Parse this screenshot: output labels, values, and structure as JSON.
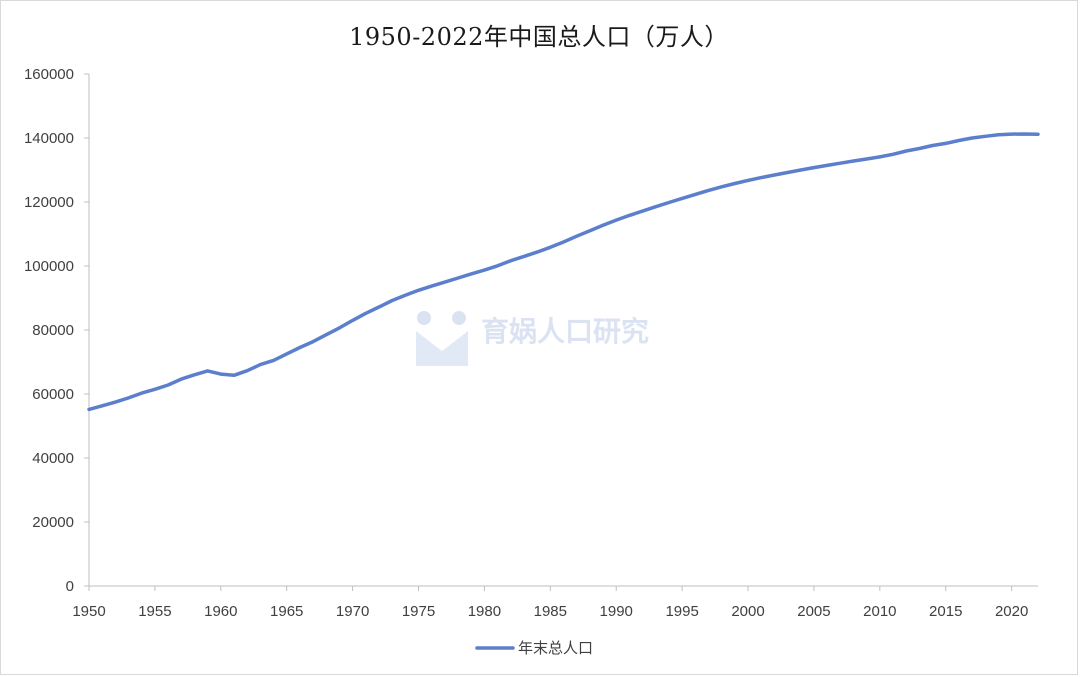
{
  "chart_data": {
    "type": "line",
    "title": "1950-2022年中国总人口（万人）",
    "xlabel": "",
    "ylabel": "",
    "x": [
      1950,
      1951,
      1952,
      1953,
      1954,
      1955,
      1956,
      1957,
      1958,
      1959,
      1960,
      1961,
      1962,
      1963,
      1964,
      1965,
      1966,
      1967,
      1968,
      1969,
      1970,
      1971,
      1972,
      1973,
      1974,
      1975,
      1976,
      1977,
      1978,
      1979,
      1980,
      1981,
      1982,
      1983,
      1984,
      1985,
      1986,
      1987,
      1988,
      1989,
      1990,
      1991,
      1992,
      1993,
      1994,
      1995,
      1996,
      1997,
      1998,
      1999,
      2000,
      2001,
      2002,
      2003,
      2004,
      2005,
      2006,
      2007,
      2008,
      2009,
      2010,
      2011,
      2012,
      2013,
      2014,
      2015,
      2016,
      2017,
      2018,
      2019,
      2020,
      2021,
      2022
    ],
    "series": [
      {
        "name": "年末总人口",
        "color": "#5b7fcc",
        "values": [
          55196,
          56300,
          57482,
          58796,
          60266,
          61465,
          62828,
          64653,
          65994,
          67207,
          66207,
          65859,
          67296,
          69172,
          70499,
          72538,
          74542,
          76368,
          78534,
          80671,
          82992,
          85229,
          87177,
          89211,
          90859,
          92420,
          93717,
          94974,
          96259,
          97542,
          98705,
          100072,
          101654,
          103008,
          104357,
          105851,
          107507,
          109300,
          111026,
          112704,
          114333,
          115823,
          117171,
          118517,
          119850,
          121121,
          122389,
          123626,
          124761,
          125786,
          126743,
          127627,
          128453,
          129227,
          129988,
          130756,
          131448,
          132129,
          132802,
          133450,
          134091,
          134916,
          135922,
          136726,
          137646,
          138326,
          139232,
          140011,
          140541,
          141008,
          141212,
          141260,
          141175
        ]
      }
    ],
    "xlim": [
      1950,
      2022
    ],
    "ylim": [
      0,
      160000
    ],
    "x_ticks": [
      "1950",
      "1955",
      "1960",
      "1965",
      "1970",
      "1975",
      "1980",
      "1985",
      "1990",
      "1995",
      "2000",
      "2005",
      "2010",
      "2015",
      "2020"
    ],
    "y_ticks": [
      "0",
      "20000",
      "40000",
      "60000",
      "80000",
      "100000",
      "120000",
      "140000",
      "160000"
    ],
    "grid": false,
    "legend_position": "bottom"
  },
  "watermark": {
    "text": "育娲人口研究"
  }
}
